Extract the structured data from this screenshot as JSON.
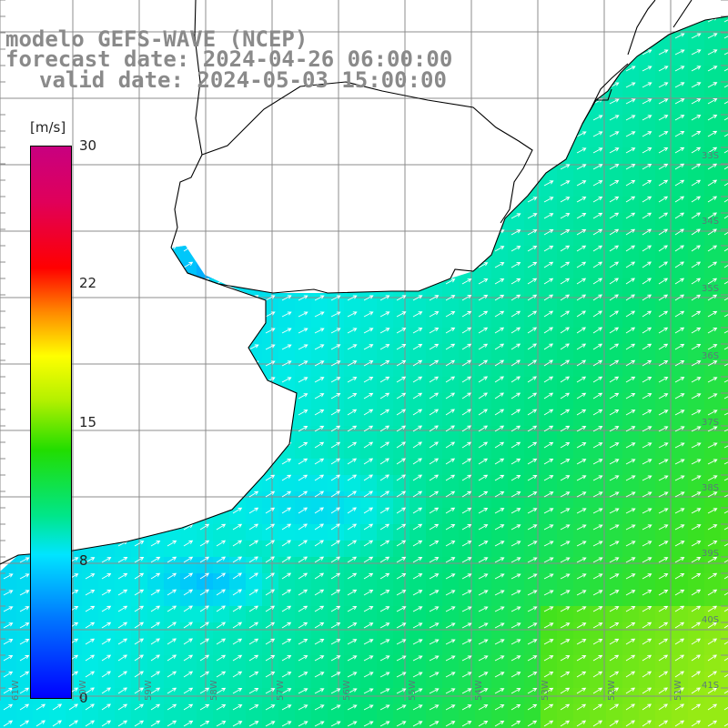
{
  "title": {
    "model": "modelo GEFS-WAVE (NCEP)",
    "forecast": "forecast date: 2024-04-26 06:00:00",
    "valid": "valid date: 2024-05-03 15:00:00"
  },
  "colorbar": {
    "unit": "[m/s]",
    "ticks": [
      "30",
      "22",
      "15",
      "8",
      "0"
    ],
    "tick_values": [
      30,
      22,
      15,
      8,
      0
    ],
    "min": 0,
    "max": 30
  },
  "lat_labels": [
    "33S",
    "34S",
    "35S",
    "36S",
    "37S",
    "38S",
    "39S",
    "40S",
    "41S"
  ],
  "lon_labels": [
    "61W",
    "60W",
    "59W",
    "58W",
    "57W",
    "56W",
    "55W",
    "54W",
    "53W",
    "52W",
    "51W"
  ],
  "map": {
    "land_color": "#ffffff",
    "grid_color": "#8c8c8c",
    "coast_color": "#000000",
    "arrow_color": "#ffffff",
    "dominant_wind_direction": "toward north-east"
  }
}
